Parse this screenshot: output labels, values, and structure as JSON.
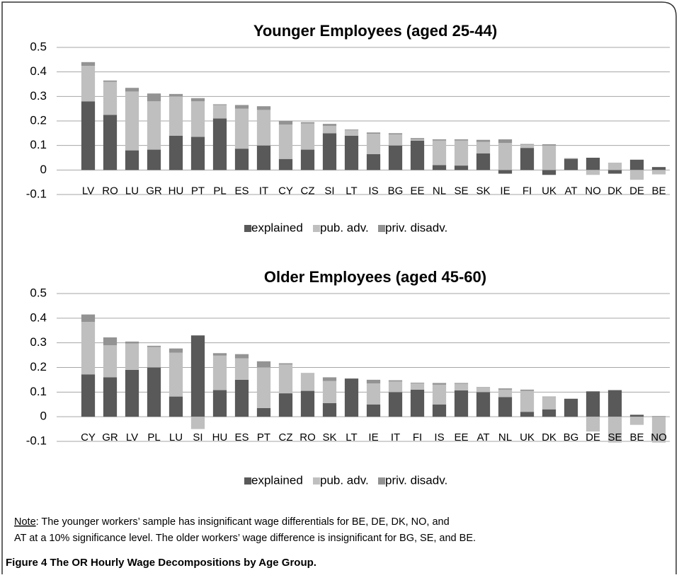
{
  "chart_data": [
    {
      "type": "stacked_bar",
      "title": "Younger Employees (aged 25-44)",
      "categories": [
        "LV",
        "RO",
        "LU",
        "GR",
        "HU",
        "PT",
        "PL",
        "ES",
        "IT",
        "CY",
        "CZ",
        "SI",
        "LT",
        "IS",
        "BG",
        "EE",
        "NL",
        "SE",
        "SK",
        "IE",
        "FI",
        "UK",
        "AT",
        "NO",
        "DK",
        "DE",
        "BE"
      ],
      "series": [
        {
          "name": "explained",
          "color": "#595959",
          "values": [
            0.28,
            0.225,
            0.08,
            0.083,
            0.14,
            0.135,
            0.21,
            0.087,
            0.1,
            0.045,
            0.083,
            0.15,
            0.14,
            0.065,
            0.1,
            0.12,
            0.02,
            0.018,
            0.068,
            -0.015,
            0.09,
            -0.02,
            0.045,
            0.05,
            -0.015,
            0.042,
            0.012
          ]
        },
        {
          "name": "pub. adv.",
          "color": "#bfbfbf",
          "values": [
            0.145,
            0.135,
            0.24,
            0.197,
            0.16,
            0.145,
            0.055,
            0.163,
            0.145,
            0.14,
            0.107,
            0.03,
            0.022,
            0.083,
            0.045,
            0.005,
            0.1,
            0.102,
            0.047,
            0.11,
            0.013,
            0.1,
            0,
            -0.02,
            0.03,
            -0.04,
            -0.018
          ]
        },
        {
          "name": "priv. disadv.",
          "color": "#939393",
          "values": [
            0.015,
            0.005,
            0.015,
            0.032,
            0.01,
            0.013,
            0.003,
            0.015,
            0.015,
            0.015,
            0.005,
            0.008,
            0.003,
            0.005,
            0.005,
            0.005,
            0.005,
            0.005,
            0.008,
            0.015,
            0.003,
            0.005,
            0.003,
            0,
            0,
            0,
            0
          ]
        }
      ],
      "ylim": [
        -0.1,
        0.5
      ],
      "yticks": [
        0.5,
        0.4,
        0.3,
        0.2,
        0.1,
        0,
        -0.1
      ],
      "grid": true,
      "legend": "bottom"
    },
    {
      "type": "stacked_bar",
      "title": "Older Employees (aged 45-60)",
      "categories": [
        "CY",
        "GR",
        "LV",
        "PL",
        "LU",
        "SI",
        "HU",
        "ES",
        "PT",
        "CZ",
        "RO",
        "SK",
        "LT",
        "IE",
        "IT",
        "FI",
        "IS",
        "EE",
        "AT",
        "NL",
        "UK",
        "DK",
        "BG",
        "DE",
        "SE",
        "BE",
        "NO"
      ],
      "series": [
        {
          "name": "explained",
          "color": "#595959",
          "values": [
            0.172,
            0.16,
            0.19,
            0.2,
            0.082,
            0.33,
            0.108,
            0.15,
            0.035,
            0.095,
            0.105,
            0.055,
            0.155,
            0.05,
            0.1,
            0.11,
            0.05,
            0.107,
            0.1,
            0.08,
            0.02,
            0.03,
            0.073,
            0.103,
            0.108,
            0.008,
            0.002
          ]
        },
        {
          "name": "pub. adv.",
          "color": "#bfbfbf",
          "values": [
            0.213,
            0.13,
            0.107,
            0.083,
            0.178,
            -0.05,
            0.14,
            0.087,
            0.165,
            0.117,
            0.07,
            0.09,
            0,
            0.085,
            0.043,
            0.025,
            0.08,
            0.027,
            0.018,
            0.03,
            0.085,
            0.05,
            0,
            -0.06,
            -0.105,
            -0.033,
            -0.105
          ]
        },
        {
          "name": "priv. disadv.",
          "color": "#939393",
          "values": [
            0.03,
            0.032,
            0.008,
            0.005,
            0.017,
            0,
            0.01,
            0.017,
            0.025,
            0.005,
            0.002,
            0.015,
            0,
            0.015,
            0.005,
            0.003,
            0.007,
            0.003,
            0.002,
            0.005,
            0.005,
            0.002,
            0,
            0,
            0,
            0,
            0
          ]
        }
      ],
      "ylim": [
        -0.1,
        0.5
      ],
      "yticks": [
        0.5,
        0.4,
        0.3,
        0.2,
        0.1,
        0,
        -0.1
      ],
      "grid": true,
      "legend": "bottom"
    }
  ],
  "note": {
    "label": "Note",
    "lines": [
      ": The younger workers’ sample has insignificant wage differentials for BE, DE, DK, NO, and",
      "AT at a 10% significance level. The older workers’ wage difference is insignificant for BG, SE, and BE."
    ]
  },
  "caption": "Figure 4 The OR Hourly Wage Decompositions by Age Group."
}
